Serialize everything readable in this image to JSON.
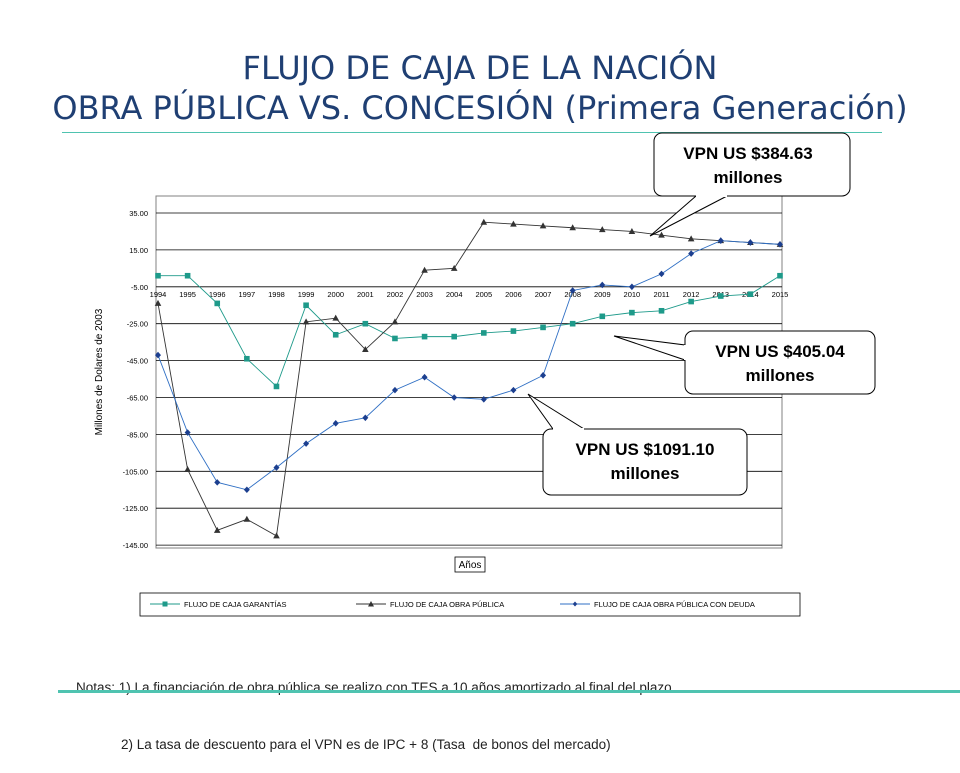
{
  "slide": {
    "title_line1": "FLUJO DE CAJA DE LA NACIÓN",
    "title_line2": "OBRA PÚBLICA VS. CONCESIÓN (Primera Generación)",
    "notes_line1": "Notas: 1) La financiación de obra pública se realizo con TES a 10 años amortizado al final del plazo",
    "notes_line2": "            2) La tasa de descuento para el VPN es de IPC + 8 (Tasa  de bonos del mercado)",
    "accent_color": "#4fc3b0",
    "title_color": "#1f3f73"
  },
  "chart_data": {
    "type": "line",
    "xlabel": "Años",
    "ylabel": "Millones de Dolares de 2003",
    "ylim": [
      -145,
      35
    ],
    "ytick_labels": [
      "35.00",
      "15.00",
      "-5.00",
      "-25.00",
      "-45.00",
      "-65.00",
      "-85.00",
      "-105.00",
      "-125.00",
      "-145.00"
    ],
    "categories": [
      "1994",
      "1995",
      "1996",
      "1997",
      "1998",
      "1999",
      "2000",
      "2001",
      "2002",
      "2003",
      "2004",
      "2005",
      "2006",
      "2007",
      "2008",
      "2009",
      "2010",
      "2011",
      "2012",
      "2013",
      "2014",
      "2015"
    ],
    "grid": true,
    "legend_position": "bottom",
    "series": [
      {
        "name": "FLUJO DE CAJA GARANTÍAS",
        "color": "#1e9a8a",
        "marker": "square",
        "values": [
          1,
          1,
          -14,
          -44,
          -59,
          -15,
          -31,
          -25,
          -33,
          -32,
          -32,
          -30,
          -29,
          -27,
          -25,
          -21,
          -19,
          -18,
          -13,
          -10,
          -9,
          1
        ]
      },
      {
        "name": "FLUJO DE CAJA OBRA PÚBLICA",
        "color": "#333333",
        "marker": "triangle",
        "values": [
          -14,
          -104,
          -137,
          -131,
          -140,
          -24,
          -22,
          -39,
          -24,
          4,
          5,
          30,
          29,
          28,
          27,
          26,
          25,
          23,
          21,
          20,
          19,
          18
        ]
      },
      {
        "name": "FLUJO DE CAJA OBRA PÚBLICA CON DEUDA",
        "color": "#2f6fc4",
        "marker": "diamond",
        "values": [
          -42,
          -84,
          -111,
          -115,
          -103,
          -90,
          -79,
          -76,
          -61,
          -54,
          -65,
          -66,
          -61,
          -53,
          -7,
          -4,
          -5,
          2,
          13,
          20,
          19,
          18
        ]
      }
    ],
    "callouts": [
      {
        "line1": "VPN US $384.63",
        "line2": "millones",
        "series": "FLUJO DE CAJA OBRA PÚBLICA"
      },
      {
        "line1": "VPN US $405.04",
        "line2": "millones",
        "series": "FLUJO DE CAJA GARANTÍAS"
      },
      {
        "line1": "VPN US $1091.10",
        "line2": "millones",
        "series": "FLUJO DE CAJA OBRA PÚBLICA CON DEUDA"
      }
    ]
  }
}
